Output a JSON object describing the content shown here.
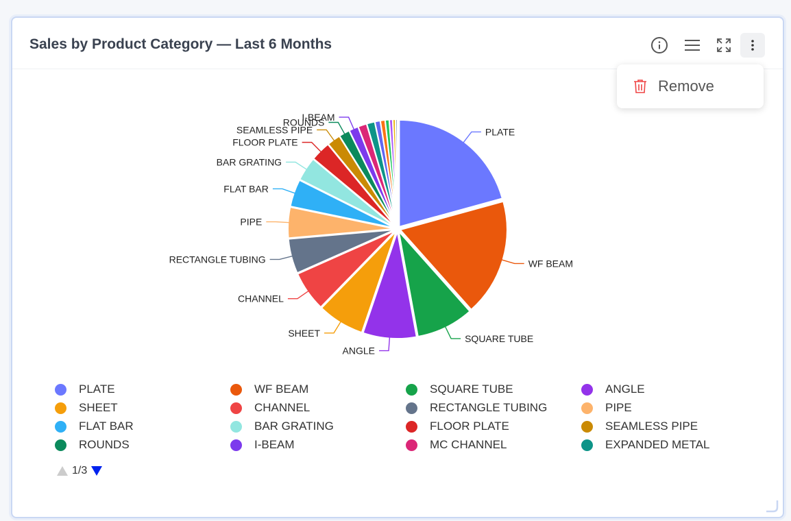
{
  "header": {
    "title": "Sales by Product Category — Last 6 Months",
    "icons": [
      "info-icon",
      "menu-icon",
      "fullscreen-icon",
      "more-vertical-icon"
    ]
  },
  "menu": {
    "remove_label": "Remove",
    "icon": "trash-icon"
  },
  "pager": {
    "text": "1/3"
  },
  "colors": {
    "accent": "#0022ee",
    "disabled": "#cccccc"
  },
  "chart_data": {
    "type": "pie",
    "title": "Sales by Product Category — Last 6 Months",
    "legend": "bottom",
    "series": [
      {
        "label": "PLATE",
        "value": 20.5,
        "color": "#6b78ff"
      },
      {
        "label": "WF BEAM",
        "value": 17.5,
        "color": "#ea580c"
      },
      {
        "label": "SQUARE TUBE",
        "value": 8.6,
        "color": "#16a34a"
      },
      {
        "label": "ANGLE",
        "value": 8.0,
        "color": "#9333ea"
      },
      {
        "label": "SHEET",
        "value": 7.0,
        "color": "#f59e0b"
      },
      {
        "label": "CHANNEL",
        "value": 6.0,
        "color": "#ef4444"
      },
      {
        "label": "RECTANGLE TUBING",
        "value": 5.2,
        "color": "#64748b"
      },
      {
        "label": "PIPE",
        "value": 4.6,
        "color": "#fdb36b"
      },
      {
        "label": "FLAT BAR",
        "value": 4.1,
        "color": "#2fb0f6"
      },
      {
        "label": "BAR GRATING",
        "value": 3.6,
        "color": "#92e6e0"
      },
      {
        "label": "FLOOR PLATE",
        "value": 3.0,
        "color": "#dc2626"
      },
      {
        "label": "SEAMLESS PIPE",
        "value": 2.0,
        "color": "#ca8a04"
      },
      {
        "label": "ROUNDS",
        "value": 1.6,
        "color": "#0b8a5c"
      },
      {
        "label": "I-BEAM",
        "value": 1.4,
        "color": "#7c3aed"
      },
      {
        "label": "MC CHANNEL",
        "value": 1.3,
        "color": "#db2777"
      },
      {
        "label": "EXPANDED METAL",
        "value": 1.2,
        "color": "#0d9488"
      },
      {
        "label": "",
        "value": 0.8,
        "color": "#6366f1"
      },
      {
        "label": "",
        "value": 0.7,
        "color": "#f97316"
      },
      {
        "label": "",
        "value": 0.6,
        "color": "#22c55e"
      },
      {
        "label": "",
        "value": 0.5,
        "color": "#a855f7"
      },
      {
        "label": "",
        "value": 0.4,
        "color": "#eab308"
      },
      {
        "label": "",
        "value": 0.3,
        "color": "#94a3b8"
      }
    ],
    "shown_labels": [
      "PLATE",
      "WF BEAM",
      "SQUARE TUBE",
      "ANGLE",
      "SHEET",
      "CHANNEL",
      "RECTANGLE TUBING",
      "PIPE",
      "FLAT BAR",
      "BAR GRATING",
      "FLOOR PLATE",
      "SEAMLESS PIPE",
      "ROUNDS",
      "I-BEAM"
    ],
    "legend_items": [
      "PLATE",
      "WF BEAM",
      "SQUARE TUBE",
      "ANGLE",
      "SHEET",
      "CHANNEL",
      "RECTANGLE TUBING",
      "PIPE",
      "FLAT BAR",
      "BAR GRATING",
      "FLOOR PLATE",
      "SEAMLESS PIPE",
      "ROUNDS",
      "I-BEAM",
      "MC CHANNEL",
      "EXPANDED METAL"
    ]
  }
}
